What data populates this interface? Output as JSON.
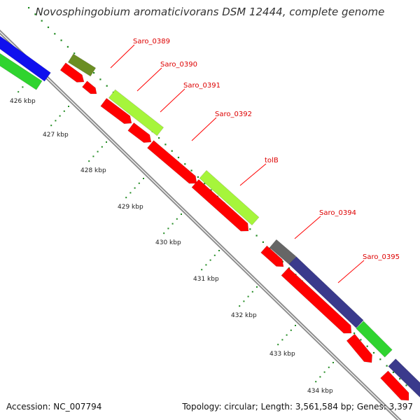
{
  "title": "Novosphingobium aromaticivorans DSM 12444, complete genome",
  "footer": {
    "accession": "Accession: NC_007794",
    "summary": "Topology: circular; Length: 3,561,584 bp; Genes: 3,397"
  },
  "ruler": {
    "labels": [
      "426 kbp",
      "427 kbp",
      "428 kbp",
      "429 kbp",
      "430 kbp",
      "431 kbp",
      "432 kbp",
      "433 kbp",
      "434 kbp"
    ]
  },
  "genes": [
    "Saro_0389",
    "Saro_0390",
    "Saro_0391",
    "Saro_0392",
    "tolB",
    "Saro_0394",
    "Saro_0395"
  ],
  "colors": {
    "cds": "#ff0000",
    "label": "#dd0000",
    "yellowgreen": "#a6f53b",
    "green": "#2fd42f",
    "olive": "#6b8e23",
    "navy": "#3a3a8c",
    "blue": "#1010ee",
    "gray": "#555555",
    "backbone": "#8c8c8c",
    "tick": "#228b22"
  }
}
